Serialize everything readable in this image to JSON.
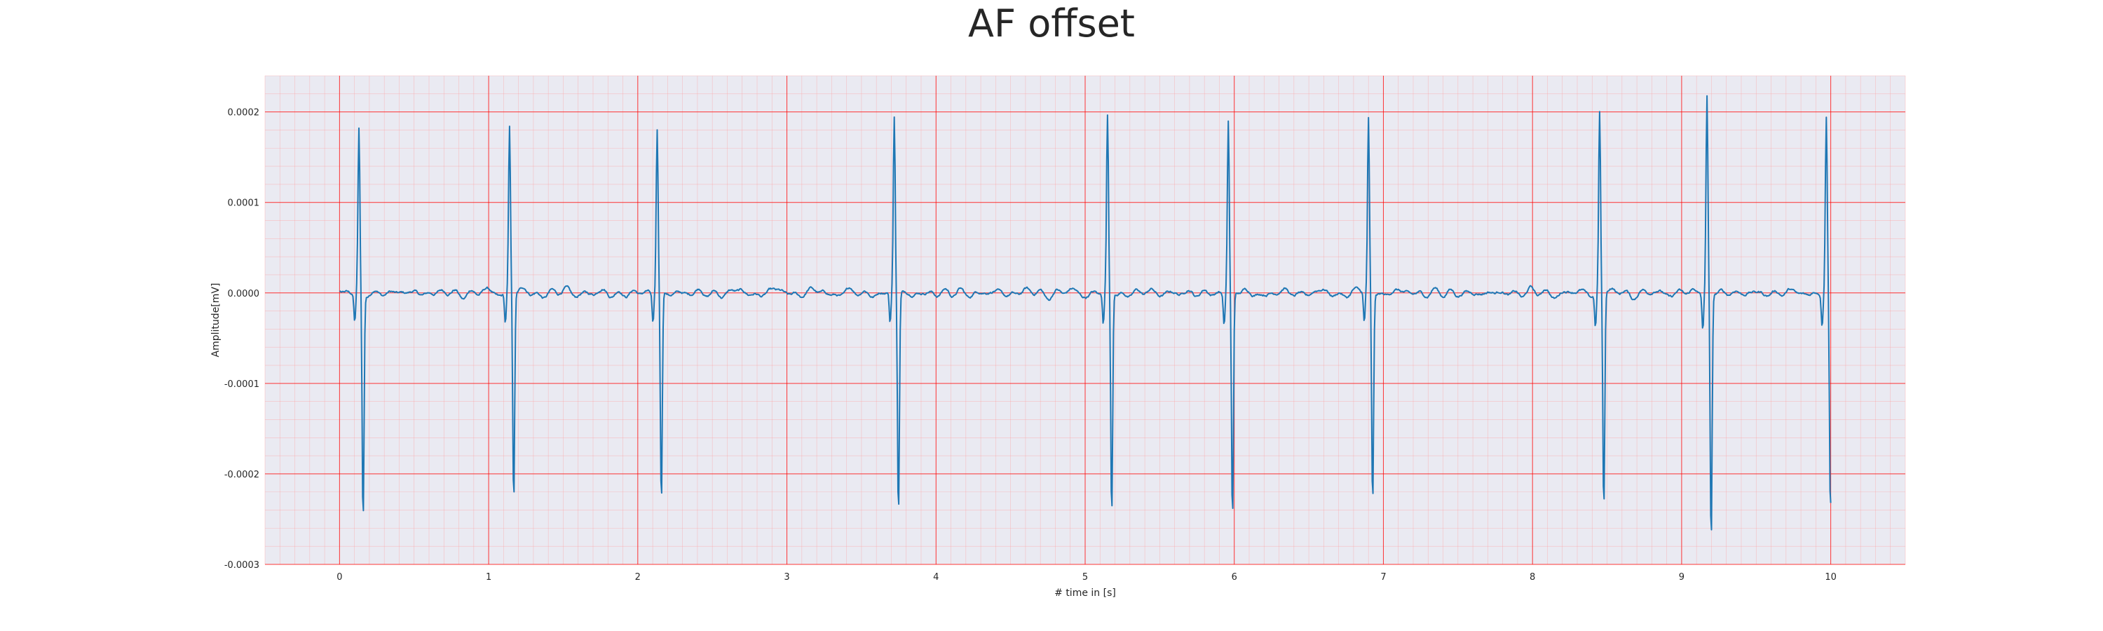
{
  "chart_data": {
    "type": "line",
    "title": "AF offset",
    "xlabel": "# time in [s]",
    "ylabel": "Amplitude[mV]",
    "xlim": [
      -0.5,
      10.5
    ],
    "ylim": [
      -0.0003,
      0.00024
    ],
    "x_ticks": [
      0,
      1,
      2,
      3,
      4,
      5,
      6,
      7,
      8,
      9,
      10
    ],
    "x_tick_labels": [
      "0",
      "1",
      "2",
      "3",
      "4",
      "5",
      "6",
      "7",
      "8",
      "9",
      "10"
    ],
    "y_ticks": [
      0.0002,
      0.0001,
      0.0,
      -0.0001,
      -0.0002,
      -0.0003
    ],
    "y_tick_labels": [
      "0.0002",
      "0.0001",
      "0.0000",
      "-0.0001",
      "-0.0002",
      "-0.0003"
    ],
    "grid": true,
    "minor_grid": true,
    "legend": "none",
    "series": [
      {
        "color": "#1f77b4",
        "beats": [
          {
            "t": 0.13,
            "peak": 0.000179,
            "trough": -0.000252
          },
          {
            "t": 1.14,
            "peak": 0.000183,
            "trough": -0.000229
          },
          {
            "t": 2.13,
            "peak": 0.00018,
            "trough": -0.000234
          },
          {
            "t": 3.72,
            "peak": 0.000193,
            "trough": -0.000244
          },
          {
            "t": 5.15,
            "peak": 0.000191,
            "trough": -0.000247
          },
          {
            "t": 5.96,
            "peak": 0.00019,
            "trough": -0.000252
          },
          {
            "t": 6.9,
            "peak": 0.000191,
            "trough": -0.000233
          },
          {
            "t": 8.45,
            "peak": 0.0002,
            "trough": -0.000238
          },
          {
            "t": 9.17,
            "peak": 0.000218,
            "trough": -0.000275
          },
          {
            "t": 9.97,
            "peak": 0.000192,
            "trough": -0.000248
          }
        ],
        "baseline_noise": 1.2e-05,
        "x_start": 0.0,
        "x_end": 10.0
      }
    ]
  },
  "colors": {
    "plot_background": "#eaeaf2",
    "major_grid": "#ff0000",
    "minor_grid": "#ff9a9a",
    "line": "#1f77b4"
  }
}
